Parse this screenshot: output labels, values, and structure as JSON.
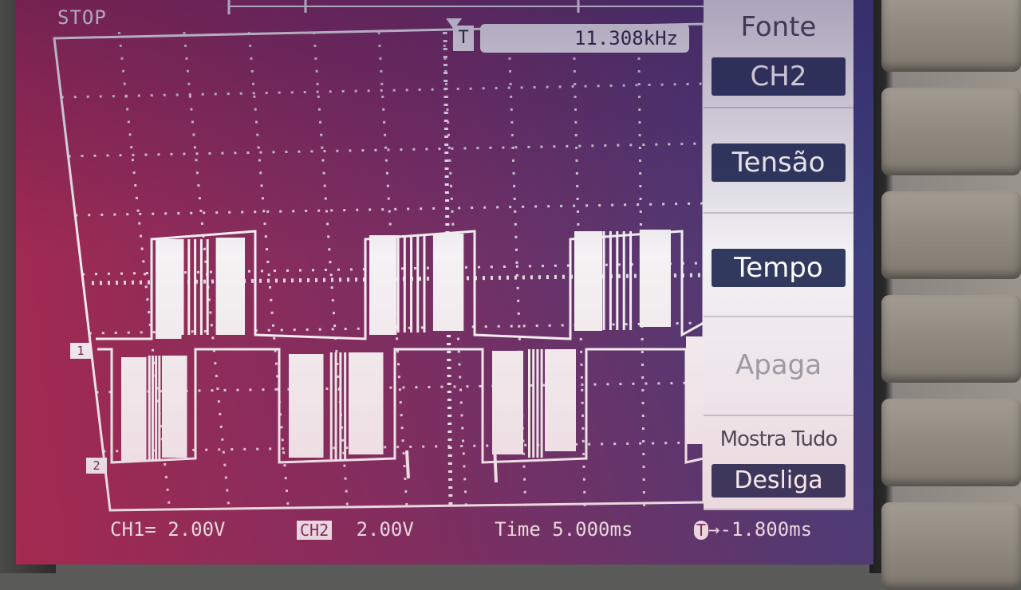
{
  "status": {
    "mode": "STOP",
    "trigger_label": "T",
    "frequency": "11.308kHz"
  },
  "channels": {
    "ch1_marker": "1",
    "ch2_marker": "2"
  },
  "bottom_bar": {
    "ch1": "CH1= 2.00V",
    "ch2_label": "CH2",
    "ch2_value": "2.00V",
    "time": "Time 5.000ms",
    "trigger_offset": "→-1.800ms",
    "trigger_icon": "T"
  },
  "menu": {
    "source_title": "Fonte",
    "source_value": "CH2",
    "voltage_value": "Tensão",
    "time_value": "Tempo",
    "clear_label": "Apaga",
    "show_all_title": "Mostra Tudo",
    "show_all_value": "Desliga"
  },
  "colors": {
    "trace": "#f4f2f4",
    "grid": "#f0eef2",
    "menu_value_bg": "#30395e",
    "menu_bg": "#f2f1f4"
  }
}
